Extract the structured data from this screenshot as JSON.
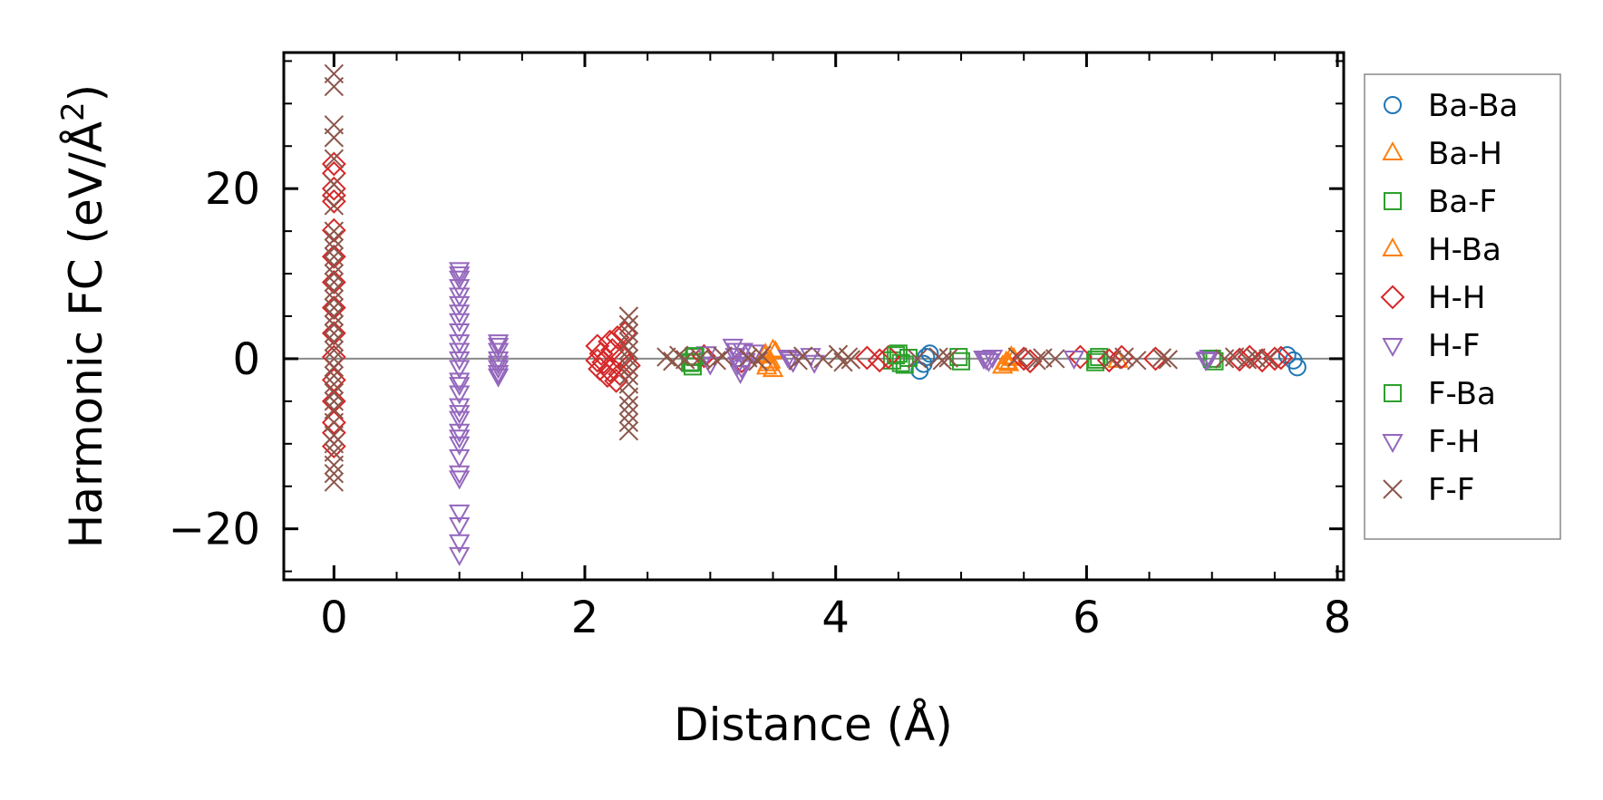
{
  "chart_data": {
    "type": "scatter",
    "xlabel": "Distance (Å)",
    "ylabel_main": "Harmonic FC (eV/Å",
    "ylabel_sup": "2",
    "ylabel_close": ")",
    "xlim": [
      -0.4,
      8.05
    ],
    "ylim": [
      -26,
      36
    ],
    "xticks": [
      0,
      2,
      4,
      6,
      8
    ],
    "xtick_labels": [
      "0",
      "2",
      "4",
      "6",
      "8"
    ],
    "yticks": [
      -20,
      0,
      20
    ],
    "ytick_labels": [
      "−20",
      "0",
      "20"
    ],
    "hline_y": 0,
    "legend_position": "outside-right",
    "series": [
      {
        "name": "Ba-Ba",
        "marker": "circle",
        "color": "#1f77b4",
        "points": [
          [
            4.67,
            -1.4
          ],
          [
            4.7,
            -0.6
          ],
          [
            4.75,
            0.6
          ],
          [
            4.72,
            0.2
          ],
          [
            7.65,
            -0.2
          ],
          [
            7.68,
            -1.0
          ],
          [
            7.6,
            0.4
          ]
        ]
      },
      {
        "name": "Ba-H",
        "marker": "triangle-up",
        "color": "#ff7f0e",
        "points": [
          [
            3.43,
            0.3
          ],
          [
            3.46,
            -0.6
          ],
          [
            3.5,
            -1.3
          ],
          [
            3.52,
            0.8
          ],
          [
            3.45,
            -1.0
          ],
          [
            5.36,
            -0.4
          ],
          [
            5.4,
            0.2
          ],
          [
            5.33,
            -0.9
          ],
          [
            6.25,
            -0.2
          ]
        ]
      },
      {
        "name": "Ba-F",
        "marker": "square",
        "color": "#2ca02c",
        "points": [
          [
            2.84,
            -0.5
          ],
          [
            2.88,
            0.2
          ],
          [
            2.86,
            -0.9
          ],
          [
            4.45,
            -0.2
          ],
          [
            4.5,
            0.6
          ],
          [
            4.55,
            -0.7
          ],
          [
            4.58,
            0.1
          ],
          [
            5.0,
            -0.3
          ],
          [
            6.07,
            -0.4
          ],
          [
            6.1,
            0.2
          ],
          [
            7.02,
            -0.3
          ]
        ]
      },
      {
        "name": "H-Ba",
        "marker": "triangle-up",
        "color": "#ff7f0e",
        "points": [
          [
            3.44,
            0.5
          ],
          [
            3.48,
            -0.3
          ],
          [
            3.5,
            1.0
          ],
          [
            5.38,
            -0.6
          ],
          [
            5.42,
            0.0
          ]
        ]
      },
      {
        "name": "H-H",
        "marker": "diamond",
        "color": "#d62728",
        "points": [
          [
            0,
            22.9
          ],
          [
            0,
            21.8
          ],
          [
            0,
            20.0
          ],
          [
            0,
            19.2
          ],
          [
            0,
            18.5
          ],
          [
            0,
            15.1
          ],
          [
            0,
            12.0
          ],
          [
            0,
            9.0
          ],
          [
            0,
            6.0
          ],
          [
            0,
            3.0
          ],
          [
            0,
            0.2
          ],
          [
            0,
            -2.5
          ],
          [
            0,
            -5.0
          ],
          [
            0,
            -7.5
          ],
          [
            0,
            -8.7
          ],
          [
            0,
            -10.3
          ],
          [
            2.1,
            1.5
          ],
          [
            2.13,
            0.6
          ],
          [
            2.15,
            -0.4
          ],
          [
            2.12,
            -1.2
          ],
          [
            2.18,
            -2.0
          ],
          [
            2.22,
            1.0
          ],
          [
            2.26,
            2.5
          ],
          [
            2.28,
            -1.8
          ],
          [
            2.32,
            3.0
          ],
          [
            2.3,
            0.2
          ],
          [
            2.25,
            -2.6
          ],
          [
            2.35,
            -0.8
          ],
          [
            2.1,
            -0.2
          ],
          [
            2.2,
            2.0
          ],
          [
            2.2,
            -1.4
          ],
          [
            2.95,
            0.3
          ],
          [
            3.25,
            -0.3
          ],
          [
            4.25,
            0.1
          ],
          [
            4.35,
            -0.2
          ],
          [
            4.42,
            0.2
          ],
          [
            5.5,
            0.0
          ],
          [
            5.55,
            -0.3
          ],
          [
            5.95,
            0.2
          ],
          [
            6.18,
            -0.2
          ],
          [
            6.28,
            0.2
          ],
          [
            6.55,
            0.0
          ],
          [
            7.22,
            -0.1
          ],
          [
            7.3,
            0.2
          ],
          [
            7.4,
            -0.2
          ],
          [
            7.5,
            0.0
          ],
          [
            7.55,
            0.1
          ]
        ]
      },
      {
        "name": "H-F",
        "marker": "triangle-down",
        "color": "#9467bd",
        "points": [
          [
            1.0,
            10.5
          ],
          [
            1.0,
            9.5
          ],
          [
            1.0,
            8.5
          ],
          [
            1.0,
            7.5
          ],
          [
            1.0,
            6.5
          ],
          [
            1.0,
            4.5
          ],
          [
            1.0,
            3.3
          ],
          [
            1.0,
            2.0
          ],
          [
            1.0,
            1.0
          ],
          [
            1.0,
            0.0
          ],
          [
            1.0,
            -1.0
          ],
          [
            1.0,
            -2.5
          ],
          [
            1.0,
            -4.0
          ],
          [
            1.0,
            -5.5
          ],
          [
            1.0,
            -7.0
          ],
          [
            1.0,
            -8.5
          ],
          [
            1.0,
            -10.0
          ],
          [
            1.0,
            -11.5
          ],
          [
            1.0,
            -14.0
          ],
          [
            1.0,
            -18.0
          ],
          [
            1.0,
            -19.5
          ],
          [
            1.0,
            -21.5
          ],
          [
            1.0,
            -23.0
          ],
          [
            1.31,
            2.0
          ],
          [
            1.31,
            1.0
          ],
          [
            1.31,
            0.0
          ],
          [
            1.31,
            -1.0
          ],
          [
            1.31,
            -2.0
          ],
          [
            2.97,
            0.6
          ],
          [
            3.0,
            -0.6
          ],
          [
            3.18,
            1.5
          ],
          [
            3.2,
            0.4
          ],
          [
            3.22,
            -0.6
          ],
          [
            3.24,
            -1.6
          ],
          [
            3.26,
            1.0
          ],
          [
            3.28,
            -0.2
          ],
          [
            3.35,
            0.8
          ],
          [
            3.62,
            0.2
          ],
          [
            3.66,
            -0.3
          ],
          [
            3.8,
            0.4
          ],
          [
            3.83,
            -0.4
          ],
          [
            5.18,
            0.1
          ],
          [
            5.22,
            -0.2
          ],
          [
            5.25,
            0.2
          ],
          [
            5.9,
            0.1
          ],
          [
            6.95,
            -0.1
          ],
          [
            6.98,
            0.2
          ]
        ]
      },
      {
        "name": "F-Ba",
        "marker": "square",
        "color": "#2ca02c",
        "points": [
          [
            2.85,
            -0.4
          ],
          [
            2.87,
            0.3
          ],
          [
            4.48,
            0.4
          ],
          [
            4.52,
            -0.5
          ],
          [
            4.98,
            0.2
          ],
          [
            6.08,
            -0.1
          ],
          [
            7.0,
            0.0
          ]
        ]
      },
      {
        "name": "F-H",
        "marker": "triangle-down",
        "color": "#9467bd",
        "points": [
          [
            1.0,
            10.0
          ],
          [
            1.0,
            5.5
          ],
          [
            1.0,
            -3.0
          ],
          [
            1.0,
            -6.3
          ],
          [
            1.0,
            -9.2
          ],
          [
            1.0,
            -13.4
          ],
          [
            1.31,
            1.6
          ],
          [
            1.31,
            -0.5
          ],
          [
            1.31,
            -1.6
          ],
          [
            3.21,
            1.0
          ],
          [
            3.25,
            -1.0
          ],
          [
            3.64,
            0.0
          ],
          [
            5.2,
            0.0
          ],
          [
            6.96,
            0.0
          ]
        ]
      },
      {
        "name": "F-F",
        "marker": "x",
        "color": "#8c564b",
        "points": [
          [
            0,
            33.5
          ],
          [
            0,
            32.0
          ],
          [
            0,
            27.5
          ],
          [
            0,
            26.0
          ],
          [
            0,
            23.5
          ],
          [
            0,
            20.5
          ],
          [
            0,
            18.0
          ],
          [
            0,
            15.0
          ],
          [
            0,
            14.0
          ],
          [
            0,
            13.0
          ],
          [
            0,
            12.0
          ],
          [
            0,
            11.0
          ],
          [
            0,
            10.0
          ],
          [
            0,
            9.0
          ],
          [
            0,
            8.0
          ],
          [
            0,
            7.0
          ],
          [
            0,
            6.0
          ],
          [
            0,
            5.0
          ],
          [
            0,
            4.0
          ],
          [
            0,
            3.0
          ],
          [
            0,
            2.0
          ],
          [
            0,
            1.0
          ],
          [
            0,
            0.0
          ],
          [
            0,
            -1.0
          ],
          [
            0,
            -2.0
          ],
          [
            0,
            -3.0
          ],
          [
            0,
            -4.0
          ],
          [
            0,
            -5.0
          ],
          [
            0,
            -6.0
          ],
          [
            0,
            -7.5
          ],
          [
            0,
            -9.0
          ],
          [
            0,
            -10.0
          ],
          [
            0,
            -11.0
          ],
          [
            0,
            -12.5
          ],
          [
            0,
            -13.5
          ],
          [
            0,
            -14.5
          ],
          [
            2.35,
            5.0
          ],
          [
            2.35,
            4.0
          ],
          [
            2.35,
            3.0
          ],
          [
            2.35,
            2.0
          ],
          [
            2.35,
            1.0
          ],
          [
            2.35,
            0.0
          ],
          [
            2.35,
            -1.0
          ],
          [
            2.35,
            -2.0
          ],
          [
            2.35,
            -3.0
          ],
          [
            2.35,
            -4.5
          ],
          [
            2.35,
            -5.5
          ],
          [
            2.35,
            -6.5
          ],
          [
            2.35,
            -7.5
          ],
          [
            2.35,
            -8.5
          ],
          [
            2.65,
            0.2
          ],
          [
            2.7,
            -0.3
          ],
          [
            2.75,
            0.4
          ],
          [
            2.8,
            -0.1
          ],
          [
            2.92,
            0.1
          ],
          [
            3.05,
            -0.2
          ],
          [
            3.1,
            0.3
          ],
          [
            3.3,
            0.1
          ],
          [
            3.38,
            -0.3
          ],
          [
            3.41,
            0.4
          ],
          [
            3.7,
            -0.2
          ],
          [
            3.74,
            0.3
          ],
          [
            3.9,
            0.0
          ],
          [
            4.02,
            0.5
          ],
          [
            4.06,
            -0.4
          ],
          [
            4.1,
            0.2
          ],
          [
            4.12,
            -0.1
          ],
          [
            4.65,
            0.0
          ],
          [
            4.82,
            0.2
          ],
          [
            4.85,
            -0.2
          ],
          [
            4.9,
            0.1
          ],
          [
            5.45,
            0.2
          ],
          [
            5.6,
            -0.2
          ],
          [
            5.65,
            0.1
          ],
          [
            5.75,
            0.0
          ],
          [
            6.2,
            -0.1
          ],
          [
            6.3,
            0.2
          ],
          [
            6.4,
            -0.2
          ],
          [
            6.6,
            0.1
          ],
          [
            6.65,
            -0.1
          ],
          [
            7.1,
            0.0
          ],
          [
            7.18,
            0.2
          ],
          [
            7.28,
            -0.1
          ],
          [
            7.35,
            0.1
          ],
          [
            7.45,
            0.0
          ]
        ]
      }
    ]
  }
}
